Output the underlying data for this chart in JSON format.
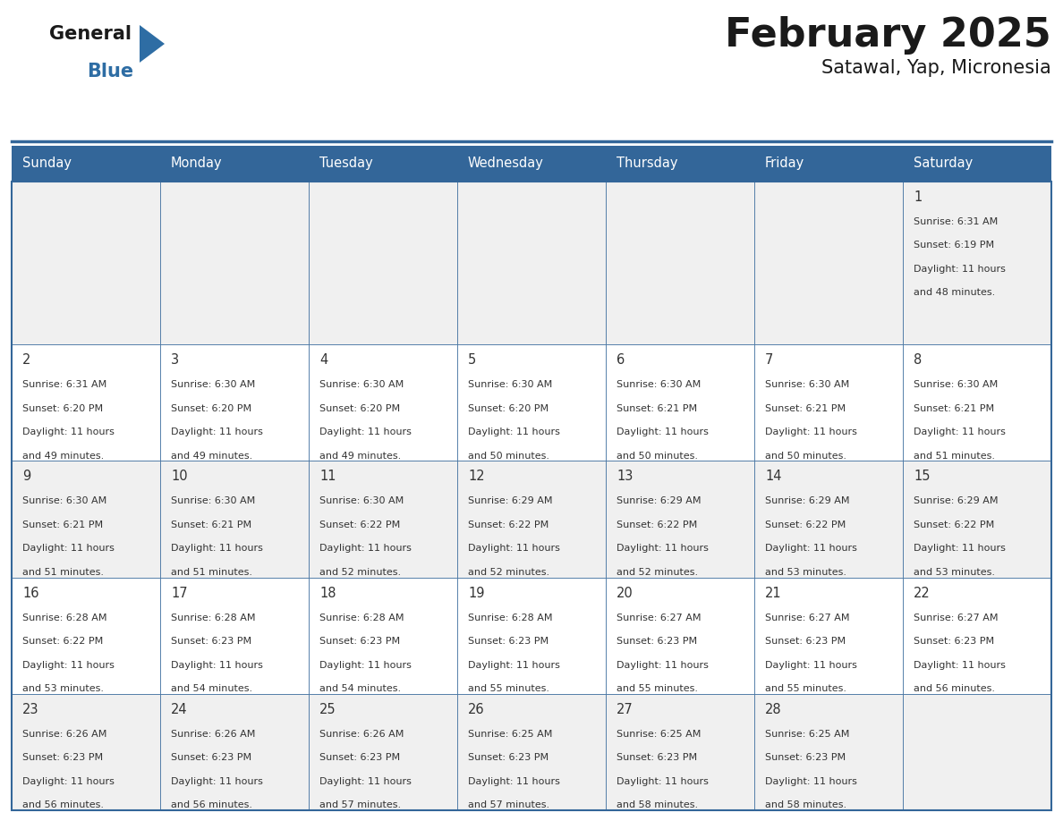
{
  "title": "February 2025",
  "subtitle": "Satawal, Yap, Micronesia",
  "header_color": "#336699",
  "header_text_color": "#ffffff",
  "days_of_week": [
    "Sunday",
    "Monday",
    "Tuesday",
    "Wednesday",
    "Thursday",
    "Friday",
    "Saturday"
  ],
  "background_color": "#ffffff",
  "row_colors": [
    "#f0f0f0",
    "#ffffff",
    "#f0f0f0",
    "#ffffff",
    "#f0f0f0"
  ],
  "border_color": "#336699",
  "day_num_color": "#333333",
  "text_color": "#333333",
  "title_color": "#1a1a1a",
  "logo_general_color": "#1a1a1a",
  "logo_blue_color": "#2e6da4",
  "logo_triangle_color": "#2e6da4",
  "calendar": [
    [
      null,
      null,
      null,
      null,
      null,
      null,
      {
        "day": "1",
        "sunrise": "6:31 AM",
        "sunset": "6:19 PM",
        "dl1": "Daylight: 11 hours",
        "dl2": "and 48 minutes."
      }
    ],
    [
      {
        "day": "2",
        "sunrise": "6:31 AM",
        "sunset": "6:20 PM",
        "dl1": "Daylight: 11 hours",
        "dl2": "and 49 minutes."
      },
      {
        "day": "3",
        "sunrise": "6:30 AM",
        "sunset": "6:20 PM",
        "dl1": "Daylight: 11 hours",
        "dl2": "and 49 minutes."
      },
      {
        "day": "4",
        "sunrise": "6:30 AM",
        "sunset": "6:20 PM",
        "dl1": "Daylight: 11 hours",
        "dl2": "and 49 minutes."
      },
      {
        "day": "5",
        "sunrise": "6:30 AM",
        "sunset": "6:20 PM",
        "dl1": "Daylight: 11 hours",
        "dl2": "and 50 minutes."
      },
      {
        "day": "6",
        "sunrise": "6:30 AM",
        "sunset": "6:21 PM",
        "dl1": "Daylight: 11 hours",
        "dl2": "and 50 minutes."
      },
      {
        "day": "7",
        "sunrise": "6:30 AM",
        "sunset": "6:21 PM",
        "dl1": "Daylight: 11 hours",
        "dl2": "and 50 minutes."
      },
      {
        "day": "8",
        "sunrise": "6:30 AM",
        "sunset": "6:21 PM",
        "dl1": "Daylight: 11 hours",
        "dl2": "and 51 minutes."
      }
    ],
    [
      {
        "day": "9",
        "sunrise": "6:30 AM",
        "sunset": "6:21 PM",
        "dl1": "Daylight: 11 hours",
        "dl2": "and 51 minutes."
      },
      {
        "day": "10",
        "sunrise": "6:30 AM",
        "sunset": "6:21 PM",
        "dl1": "Daylight: 11 hours",
        "dl2": "and 51 minutes."
      },
      {
        "day": "11",
        "sunrise": "6:30 AM",
        "sunset": "6:22 PM",
        "dl1": "Daylight: 11 hours",
        "dl2": "and 52 minutes."
      },
      {
        "day": "12",
        "sunrise": "6:29 AM",
        "sunset": "6:22 PM",
        "dl1": "Daylight: 11 hours",
        "dl2": "and 52 minutes."
      },
      {
        "day": "13",
        "sunrise": "6:29 AM",
        "sunset": "6:22 PM",
        "dl1": "Daylight: 11 hours",
        "dl2": "and 52 minutes."
      },
      {
        "day": "14",
        "sunrise": "6:29 AM",
        "sunset": "6:22 PM",
        "dl1": "Daylight: 11 hours",
        "dl2": "and 53 minutes."
      },
      {
        "day": "15",
        "sunrise": "6:29 AM",
        "sunset": "6:22 PM",
        "dl1": "Daylight: 11 hours",
        "dl2": "and 53 minutes."
      }
    ],
    [
      {
        "day": "16",
        "sunrise": "6:28 AM",
        "sunset": "6:22 PM",
        "dl1": "Daylight: 11 hours",
        "dl2": "and 53 minutes."
      },
      {
        "day": "17",
        "sunrise": "6:28 AM",
        "sunset": "6:23 PM",
        "dl1": "Daylight: 11 hours",
        "dl2": "and 54 minutes."
      },
      {
        "day": "18",
        "sunrise": "6:28 AM",
        "sunset": "6:23 PM",
        "dl1": "Daylight: 11 hours",
        "dl2": "and 54 minutes."
      },
      {
        "day": "19",
        "sunrise": "6:28 AM",
        "sunset": "6:23 PM",
        "dl1": "Daylight: 11 hours",
        "dl2": "and 55 minutes."
      },
      {
        "day": "20",
        "sunrise": "6:27 AM",
        "sunset": "6:23 PM",
        "dl1": "Daylight: 11 hours",
        "dl2": "and 55 minutes."
      },
      {
        "day": "21",
        "sunrise": "6:27 AM",
        "sunset": "6:23 PM",
        "dl1": "Daylight: 11 hours",
        "dl2": "and 55 minutes."
      },
      {
        "day": "22",
        "sunrise": "6:27 AM",
        "sunset": "6:23 PM",
        "dl1": "Daylight: 11 hours",
        "dl2": "and 56 minutes."
      }
    ],
    [
      {
        "day": "23",
        "sunrise": "6:26 AM",
        "sunset": "6:23 PM",
        "dl1": "Daylight: 11 hours",
        "dl2": "and 56 minutes."
      },
      {
        "day": "24",
        "sunrise": "6:26 AM",
        "sunset": "6:23 PM",
        "dl1": "Daylight: 11 hours",
        "dl2": "and 56 minutes."
      },
      {
        "day": "25",
        "sunrise": "6:26 AM",
        "sunset": "6:23 PM",
        "dl1": "Daylight: 11 hours",
        "dl2": "and 57 minutes."
      },
      {
        "day": "26",
        "sunrise": "6:25 AM",
        "sunset": "6:23 PM",
        "dl1": "Daylight: 11 hours",
        "dl2": "and 57 minutes."
      },
      {
        "day": "27",
        "sunrise": "6:25 AM",
        "sunset": "6:23 PM",
        "dl1": "Daylight: 11 hours",
        "dl2": "and 58 minutes."
      },
      {
        "day": "28",
        "sunrise": "6:25 AM",
        "sunset": "6:23 PM",
        "dl1": "Daylight: 11 hours",
        "dl2": "and 58 minutes."
      },
      null
    ]
  ]
}
